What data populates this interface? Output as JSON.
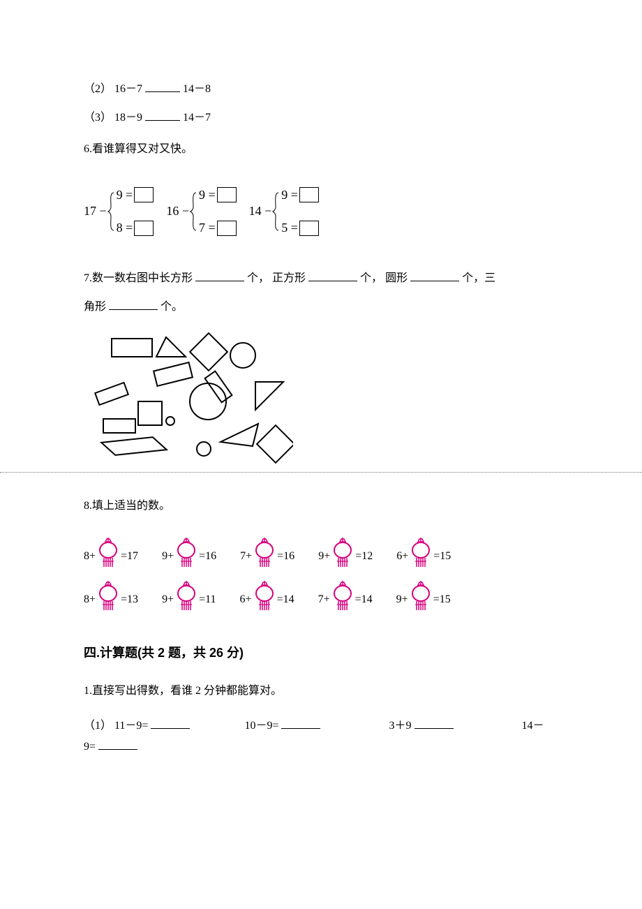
{
  "q5_2": {
    "label": "（2）",
    "lhs": "16－7",
    "rhs": "14－8"
  },
  "q5_3": {
    "label": "（3）",
    "lhs": "18－9",
    "rhs": "14－7"
  },
  "q6": {
    "title": "6.看谁算得又对又快。",
    "groups": [
      {
        "lead": "17 −",
        "top": "9 =",
        "bot": "8 ="
      },
      {
        "lead": "16 −",
        "top": "9 =",
        "bot": "7 ="
      },
      {
        "lead": "14 −",
        "top": "9 =",
        "bot": "5 ="
      }
    ],
    "brace_color": "#000000",
    "box_color": "#000000"
  },
  "q7": {
    "text_pre": "7.数一数右图中长方形",
    "unit": "个，",
    "label_sq": "正方形",
    "label_cir": "圆形",
    "unit2": "个，三",
    "line2_pre": "角形",
    "unit_end": "个。",
    "shapes": {
      "stroke": "#000000",
      "bg": "#ffffff"
    }
  },
  "q8": {
    "title": "8.填上适当的数。",
    "lantern_color": "#d6007e",
    "row1": [
      {
        "a": "8+",
        "eq": "=17"
      },
      {
        "a": "9+",
        "eq": "=16"
      },
      {
        "a": "7+",
        "eq": "=16"
      },
      {
        "a": "9+",
        "eq": "=12"
      },
      {
        "a": "6+",
        "eq": "=15"
      }
    ],
    "row2": [
      {
        "a": "8+",
        "eq": "=13"
      },
      {
        "a": "9+",
        "eq": "=11"
      },
      {
        "a": "6+",
        "eq": "=14"
      },
      {
        "a": "7+",
        "eq": "=14"
      },
      {
        "a": "9+",
        "eq": "=15"
      }
    ]
  },
  "section4": {
    "heading": "四.计算题(共 2 题，共 26 分)",
    "q1_title": "1.直接写出得数，看谁 2 分钟都能算对。",
    "items": {
      "label": "（1）",
      "e1": "11－9=",
      "e2": "10－9=",
      "e3": "3＋9",
      "e4": "14－",
      "e4b": "9="
    }
  }
}
